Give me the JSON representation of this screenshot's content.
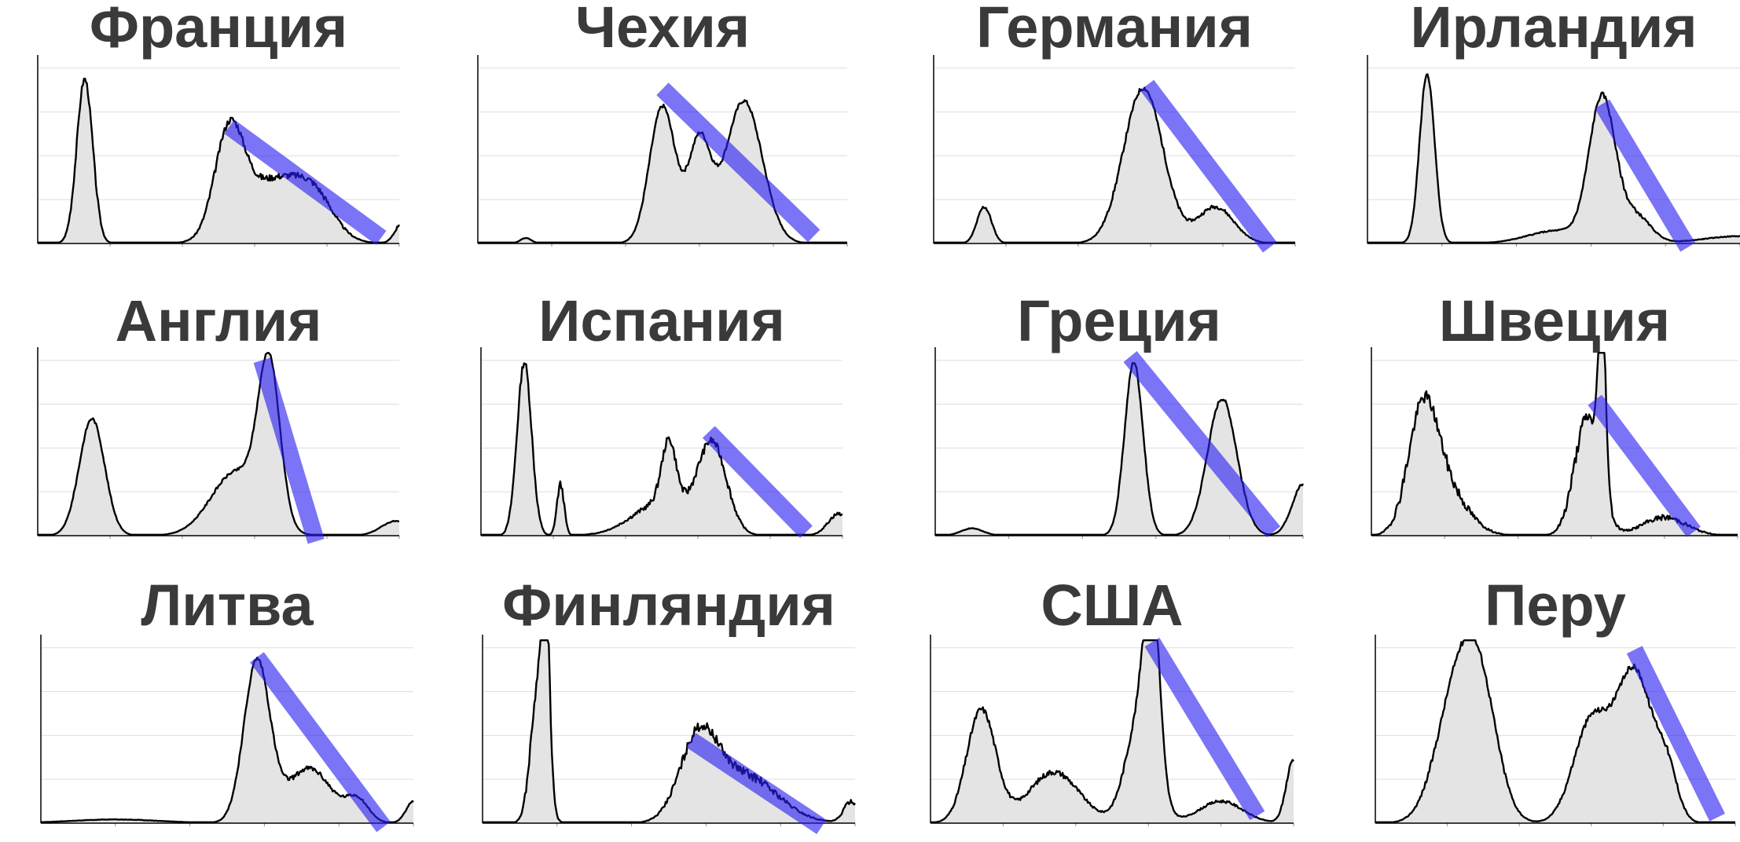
{
  "figure": {
    "background": "#ffffff",
    "title_color": "#3a3a3a"
  },
  "style": {
    "line_color": "#000000",
    "fill_color": "#e4e4e4",
    "grid_color": "#dddddd",
    "trend_color": "#2a1ff0"
  },
  "chart_data": [
    {
      "type": "area",
      "title": "Франция",
      "y_range": [
        0,
        100
      ],
      "grid": true,
      "shape": "Франция",
      "trend": {
        "from": [
          0.53,
          0.62
        ],
        "to": [
          0.95,
          0.03
        ]
      }
    },
    {
      "type": "area",
      "title": "Чехия",
      "y_range": [
        0,
        100
      ],
      "grid": true,
      "shape": "Чехия",
      "trend": {
        "from": [
          0.5,
          0.82
        ],
        "to": [
          0.91,
          0.04
        ]
      }
    },
    {
      "type": "area",
      "title": "Германия",
      "y_range": [
        0,
        100
      ],
      "grid": true,
      "shape": "Германия",
      "trend": {
        "from": [
          0.59,
          0.84
        ],
        "to": [
          0.93,
          -0.02
        ]
      }
    },
    {
      "type": "area",
      "title": "Ирландия",
      "y_range": [
        0,
        100
      ],
      "grid": true,
      "shape": "Ирландия",
      "trend": {
        "from": [
          0.63,
          0.74
        ],
        "to": [
          0.86,
          -0.02
        ]
      }
    },
    {
      "type": "area",
      "title": "Англия",
      "y_range": [
        0,
        100
      ],
      "grid": true,
      "shape": "Англия",
      "trend": {
        "from": [
          0.62,
          0.93
        ],
        "to": [
          0.77,
          -0.03
        ]
      }
    },
    {
      "type": "area",
      "title": "Испания",
      "y_range": [
        0,
        100
      ],
      "grid": true,
      "shape": "Испания",
      "trend": {
        "from": [
          0.63,
          0.55
        ],
        "to": [
          0.9,
          0.02
        ]
      }
    },
    {
      "type": "area",
      "title": "Греция",
      "y_range": [
        0,
        100
      ],
      "grid": true,
      "shape": "Греция",
      "trend": {
        "from": [
          0.53,
          0.95
        ],
        "to": [
          0.92,
          0.02
        ]
      }
    },
    {
      "type": "area",
      "title": "Швеция",
      "y_range": [
        0,
        100
      ],
      "grid": true,
      "shape": "Швеция",
      "trend": {
        "from": [
          0.61,
          0.72
        ],
        "to": [
          0.88,
          0.02
        ]
      }
    },
    {
      "type": "area",
      "title": "Литва",
      "y_range": [
        0,
        100
      ],
      "grid": true,
      "shape": "Литва",
      "trend": {
        "from": [
          0.58,
          0.88
        ],
        "to": [
          0.92,
          -0.02
        ]
      }
    },
    {
      "type": "area",
      "title": "Финляндия",
      "y_range": [
        0,
        100
      ],
      "grid": true,
      "shape": "Финляндия",
      "trend": {
        "from": [
          0.56,
          0.44
        ],
        "to": [
          0.91,
          -0.02
        ]
      }
    },
    {
      "type": "area",
      "title": "США",
      "y_range": [
        0,
        100
      ],
      "grid": true,
      "shape": "США",
      "trend": {
        "from": [
          0.61,
          0.96
        ],
        "to": [
          0.9,
          0.04
        ]
      }
    },
    {
      "type": "area",
      "title": "Перу",
      "y_range": [
        0,
        100
      ],
      "grid": true,
      "shape": "Перу",
      "trend": {
        "from": [
          0.72,
          0.92
        ],
        "to": [
          0.95,
          0.03
        ]
      }
    }
  ]
}
